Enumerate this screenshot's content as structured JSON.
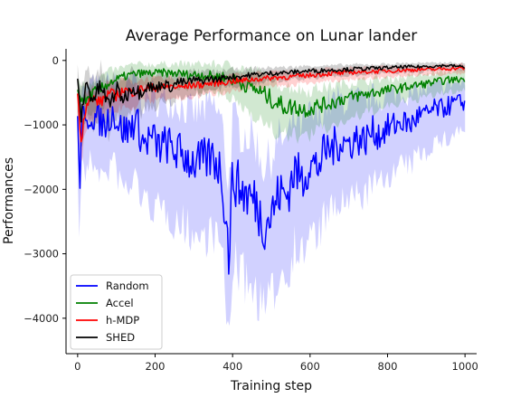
{
  "chart_data": {
    "type": "line",
    "title": "Average Performance on Lunar lander",
    "xlabel": "Training step",
    "ylabel": "Performances",
    "xlim": [
      -30,
      1030
    ],
    "ylim": [
      -4550,
      180
    ],
    "xticks": [
      0,
      200,
      400,
      600,
      800,
      1000
    ],
    "yticks": [
      0,
      -1000,
      -2000,
      -3000,
      -4000
    ],
    "xtick_labels": [
      "0",
      "200",
      "400",
      "600",
      "800",
      "1000"
    ],
    "ytick_labels": [
      "0",
      "−1000",
      "−2000",
      "−3000",
      "−4000"
    ],
    "grid": false,
    "legend_position": "lower-left",
    "series": [
      {
        "name": "Random",
        "color": "#0000ff",
        "x": [
          0,
          5,
          10,
          20,
          30,
          50,
          70,
          90,
          110,
          130,
          150,
          170,
          190,
          210,
          230,
          250,
          270,
          290,
          310,
          330,
          350,
          370,
          380,
          390,
          400,
          420,
          440,
          460,
          480,
          500,
          520,
          540,
          560,
          580,
          600,
          620,
          640,
          660,
          680,
          700,
          720,
          740,
          760,
          780,
          800,
          820,
          840,
          860,
          880,
          900,
          920,
          940,
          960,
          980,
          1000
        ],
        "values": [
          -800,
          -2250,
          -700,
          -1100,
          -850,
          -900,
          -1000,
          -800,
          -1050,
          -1100,
          -900,
          -1300,
          -1200,
          -1350,
          -1300,
          -1400,
          -1450,
          -1550,
          -1600,
          -1550,
          -1500,
          -1700,
          -2250,
          -3000,
          -1800,
          -2000,
          -2100,
          -2200,
          -2550,
          -2400,
          -2050,
          -2100,
          -1700,
          -1850,
          -1600,
          -1650,
          -1400,
          -1350,
          -1250,
          -1300,
          -1200,
          -1250,
          -1100,
          -1150,
          -1050,
          -1000,
          -950,
          -1000,
          -850,
          -850,
          -750,
          -750,
          -700,
          -650,
          -650
        ],
        "band": [
          500,
          700,
          400,
          500,
          500,
          500,
          600,
          500,
          600,
          650,
          600,
          650,
          700,
          700,
          700,
          750,
          750,
          750,
          800,
          800,
          800,
          800,
          900,
          1000,
          900,
          900,
          950,
          950,
          900,
          900,
          850,
          850,
          800,
          800,
          750,
          750,
          700,
          700,
          650,
          650,
          600,
          600,
          550,
          550,
          500,
          500,
          450,
          450,
          400,
          400,
          350,
          350,
          350,
          300,
          300
        ]
      },
      {
        "name": "Accel",
        "color": "#008000",
        "x": [
          0,
          20,
          40,
          60,
          80,
          100,
          120,
          140,
          160,
          180,
          200,
          220,
          240,
          260,
          280,
          300,
          320,
          340,
          360,
          380,
          400,
          420,
          440,
          460,
          480,
          500,
          520,
          540,
          560,
          580,
          600,
          620,
          640,
          660,
          680,
          700,
          720,
          740,
          760,
          780,
          800,
          820,
          840,
          860,
          880,
          900,
          920,
          940,
          960,
          980,
          1000
        ],
        "values": [
          -500,
          -650,
          -500,
          -450,
          -350,
          -300,
          -250,
          -220,
          -200,
          -200,
          -200,
          -190,
          -200,
          -200,
          -220,
          -220,
          -220,
          -240,
          -250,
          -260,
          -300,
          -350,
          -400,
          -450,
          -520,
          -600,
          -680,
          -720,
          -720,
          -760,
          -750,
          -700,
          -680,
          -650,
          -600,
          -580,
          -550,
          -530,
          -500,
          -480,
          -460,
          -440,
          -420,
          -400,
          -380,
          -360,
          -340,
          -320,
          -300,
          -300,
          -280
        ],
        "band": [
          200,
          250,
          200,
          200,
          180,
          160,
          150,
          150,
          140,
          140,
          140,
          140,
          140,
          150,
          160,
          160,
          170,
          180,
          190,
          200,
          220,
          240,
          260,
          280,
          300,
          320,
          320,
          320,
          300,
          300,
          280,
          270,
          260,
          250,
          240,
          230,
          220,
          210,
          200,
          190,
          180,
          170,
          160,
          150,
          150,
          140,
          140,
          130,
          130,
          120,
          120
        ]
      },
      {
        "name": "h-MDP",
        "color": "#ff0000",
        "x": [
          0,
          10,
          20,
          40,
          60,
          80,
          100,
          120,
          140,
          160,
          180,
          200,
          220,
          240,
          260,
          280,
          300,
          320,
          340,
          360,
          380,
          400,
          420,
          440,
          460,
          480,
          500,
          520,
          540,
          560,
          580,
          600,
          620,
          640,
          660,
          680,
          700,
          720,
          740,
          760,
          780,
          800,
          820,
          840,
          860,
          880,
          900,
          920,
          940,
          960,
          980,
          1000
        ],
        "values": [
          -600,
          -1200,
          -700,
          -600,
          -650,
          -500,
          -550,
          -450,
          -500,
          -450,
          -420,
          -420,
          -420,
          -400,
          -420,
          -400,
          -380,
          -380,
          -360,
          -350,
          -340,
          -320,
          -320,
          -300,
          -290,
          -280,
          -270,
          -260,
          -260,
          -250,
          -240,
          -230,
          -220,
          -210,
          -200,
          -200,
          -190,
          -180,
          -180,
          -170,
          -170,
          -160,
          -160,
          -150,
          -150,
          -140,
          -140,
          -140,
          -130,
          -130,
          -120,
          -120
        ],
        "band": [
          250,
          300,
          250,
          200,
          200,
          180,
          180,
          160,
          160,
          150,
          140,
          140,
          130,
          130,
          130,
          130,
          120,
          120,
          110,
          110,
          110,
          100,
          100,
          100,
          100,
          90,
          90,
          90,
          90,
          90,
          80,
          80,
          80,
          80,
          80,
          80,
          80,
          70,
          70,
          70,
          70,
          70,
          70,
          70,
          70,
          60,
          60,
          60,
          60,
          60,
          60,
          60
        ]
      },
      {
        "name": "SHED",
        "color": "#000000",
        "x": [
          0,
          10,
          20,
          40,
          60,
          80,
          100,
          120,
          140,
          160,
          180,
          200,
          220,
          240,
          260,
          280,
          300,
          320,
          340,
          360,
          380,
          400,
          420,
          440,
          460,
          480,
          500,
          520,
          540,
          560,
          580,
          600,
          620,
          640,
          660,
          680,
          700,
          720,
          740,
          760,
          780,
          800,
          820,
          840,
          860,
          880,
          900,
          920,
          940,
          960,
          980,
          1000
        ],
        "values": [
          -400,
          -900,
          -350,
          -600,
          -400,
          -700,
          -450,
          -600,
          -400,
          -500,
          -380,
          -450,
          -350,
          -420,
          -330,
          -350,
          -300,
          -320,
          -280,
          -300,
          -260,
          -250,
          -250,
          -230,
          -220,
          -210,
          -200,
          -190,
          -190,
          -180,
          -170,
          -160,
          -160,
          -150,
          -150,
          -140,
          -140,
          -130,
          -130,
          -120,
          -120,
          -110,
          -110,
          -100,
          -100,
          -100,
          -90,
          -90,
          -80,
          -80,
          -90,
          -100
        ],
        "band": [
          300,
          400,
          300,
          300,
          300,
          300,
          300,
          280,
          260,
          240,
          220,
          200,
          180,
          170,
          160,
          150,
          140,
          130,
          120,
          120,
          110,
          110,
          100,
          100,
          100,
          90,
          90,
          90,
          80,
          80,
          80,
          80,
          80,
          70,
          70,
          70,
          70,
          70,
          60,
          60,
          60,
          60,
          60,
          60,
          60,
          60,
          50,
          50,
          50,
          50,
          50,
          50
        ]
      }
    ]
  }
}
